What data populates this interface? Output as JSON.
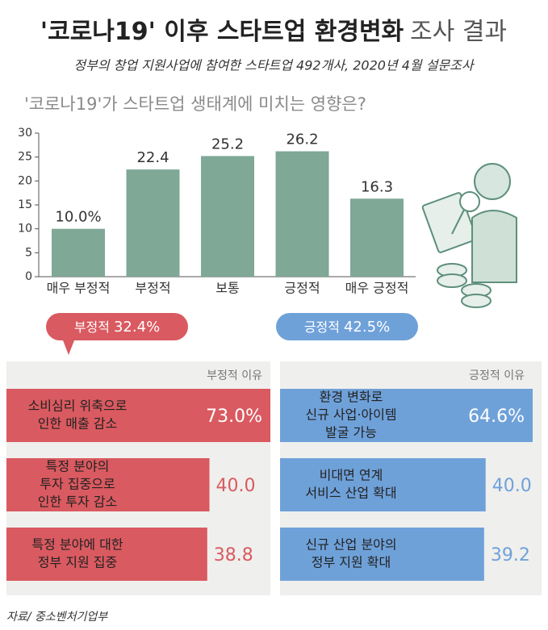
{
  "header": {
    "title": "'코로나19' 이후 스타트업 환경변화",
    "title_light": "조사 결과",
    "subtitle": "정부의 창업 지원사업에 참여한 스타트업 492개사, 2020년 4월 설문조사"
  },
  "source": "자료/ 중소벤처기업부",
  "chart_data": [
    {
      "type": "bar",
      "title": "'코로나19'가 스타트업 생태계에 미치는 영향은?",
      "categories": [
        "매우 부정적",
        "부정적",
        "보통",
        "긍정적",
        "매우 긍정적"
      ],
      "values": [
        10.0,
        22.4,
        25.2,
        26.2,
        16.3
      ],
      "value_labels": [
        "10.0%",
        "22.4",
        "25.2",
        "26.2",
        "16.3"
      ],
      "color": "#7fa896",
      "ylim": [
        0,
        30
      ],
      "yticks": [
        0,
        5,
        10,
        15,
        20,
        25,
        30
      ],
      "groups": [
        {
          "name": "부정적",
          "value": 32.4,
          "value_label": "32.4%",
          "color": "#d95a60"
        },
        {
          "name": "긍정적",
          "value": 42.5,
          "value_label": "42.5%",
          "color": "#6fa1d9"
        }
      ]
    },
    {
      "type": "hbar",
      "title": "부정적 이유",
      "color": "#d95a60",
      "categories": [
        [
          "소비심리 위축으로",
          "인한 매출 감소"
        ],
        [
          "특정 분야의",
          "투자 집중으로",
          "인한 투자 감소"
        ],
        [
          "특정 분야에 대한",
          "정부 지원 집중"
        ]
      ],
      "values": [
        73.0,
        40.0,
        38.8
      ],
      "value_labels": [
        "73.0%",
        "40.0",
        "38.8"
      ]
    },
    {
      "type": "hbar",
      "title": "긍정적 이유",
      "color": "#6fa1d9",
      "categories": [
        [
          "환경 변화로",
          "신규 사업·아이템",
          "발굴 가능"
        ],
        [
          "비대면 연계",
          "서비스 산업 확대"
        ],
        [
          "신규 산업 분야의",
          "정부 지원 확대"
        ]
      ],
      "values": [
        64.6,
        40.0,
        39.2
      ],
      "value_labels": [
        "64.6%",
        "40.0",
        "39.2"
      ]
    }
  ]
}
